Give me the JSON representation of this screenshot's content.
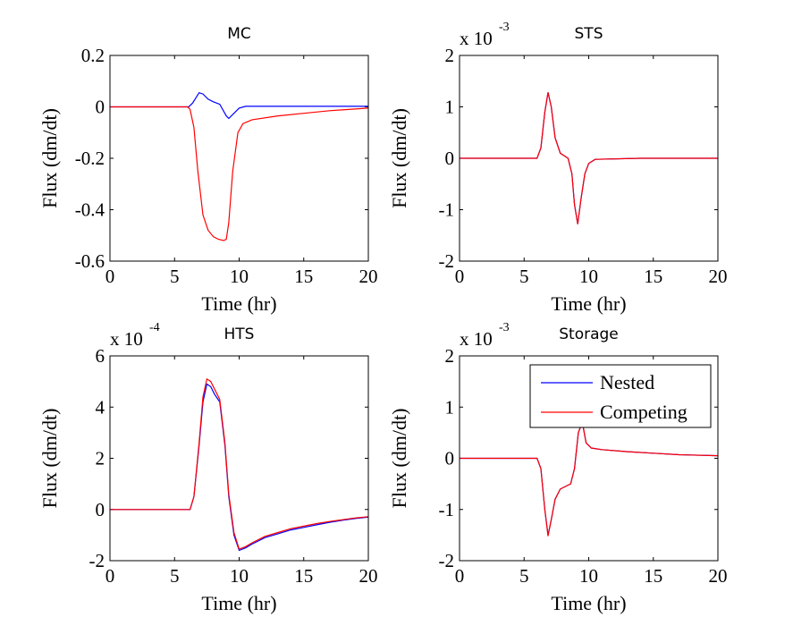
{
  "colors": {
    "nested": "#0000ff",
    "competing": "#ff0000"
  },
  "legend": {
    "entries": [
      "Nested",
      "Competing"
    ],
    "placement": "top-right",
    "panel": "Storage"
  },
  "chart_data": [
    {
      "type": "line",
      "title": "MC",
      "xlabel": "Time (hr)",
      "ylabel": "Flux (dm/dt)",
      "multiplier": "",
      "xlim": [
        0,
        20
      ],
      "ylim": [
        -0.6,
        0.2
      ],
      "xticks": [
        "0",
        "5",
        "10",
        "15",
        "20"
      ],
      "yticks": [
        "-0.6",
        "-0.4",
        "-0.2",
        "0",
        "0.2"
      ],
      "series": [
        {
          "name": "Nested",
          "color": "#0000ff",
          "x": [
            0,
            6.1,
            6.4,
            6.9,
            7.2,
            7.6,
            8.0,
            8.5,
            9.0,
            9.2,
            9.6,
            10.0,
            10.5,
            12,
            20
          ],
          "y": [
            0,
            0,
            0.015,
            0.055,
            0.05,
            0.03,
            0.02,
            0.01,
            -0.035,
            -0.045,
            -0.025,
            -0.005,
            0.002,
            0.002,
            0.002
          ]
        },
        {
          "name": "Competing",
          "color": "#ff0000",
          "x": [
            0,
            6.0,
            6.2,
            6.5,
            6.8,
            7.2,
            7.6,
            8.0,
            8.4,
            8.8,
            9.0,
            9.2,
            9.5,
            9.9,
            10.3,
            11,
            13,
            15,
            17,
            20
          ],
          "y": [
            0,
            0,
            -0.01,
            -0.08,
            -0.25,
            -0.42,
            -0.48,
            -0.505,
            -0.515,
            -0.52,
            -0.515,
            -0.45,
            -0.25,
            -0.1,
            -0.065,
            -0.05,
            -0.035,
            -0.025,
            -0.015,
            -0.005
          ]
        }
      ]
    },
    {
      "type": "line",
      "title": "STS",
      "xlabel": "Time (hr)",
      "ylabel": "Flux (dm/dt)",
      "multiplier": "x 10",
      "multiplier_exp": "-3",
      "xlim": [
        0,
        20
      ],
      "ylim": [
        -2,
        2
      ],
      "xticks": [
        "0",
        "5",
        "10",
        "15",
        "20"
      ],
      "yticks": [
        "-2",
        "-1",
        "0",
        "1",
        "2"
      ],
      "series": [
        {
          "name": "Nested",
          "color": "#0000ff",
          "x": [
            0,
            6.0,
            6.3,
            6.6,
            6.85,
            7.1,
            7.4,
            7.8,
            8.1,
            8.4,
            8.7,
            8.9,
            9.15,
            9.4,
            9.7,
            10.0,
            10.5,
            14,
            20
          ],
          "y": [
            0,
            0,
            0.2,
            0.9,
            1.28,
            1.0,
            0.4,
            0.1,
            0.05,
            0.0,
            -0.3,
            -0.9,
            -1.28,
            -0.8,
            -0.3,
            -0.1,
            -0.02,
            0.0,
            0.0
          ]
        },
        {
          "name": "Competing",
          "color": "#ff0000",
          "x": [
            0,
            6.0,
            6.3,
            6.6,
            6.85,
            7.1,
            7.4,
            7.8,
            8.1,
            8.4,
            8.7,
            8.9,
            9.15,
            9.4,
            9.7,
            10.0,
            10.5,
            14,
            20
          ],
          "y": [
            0,
            0,
            0.2,
            0.9,
            1.28,
            1.0,
            0.4,
            0.1,
            0.05,
            0.0,
            -0.3,
            -0.9,
            -1.28,
            -0.8,
            -0.3,
            -0.1,
            -0.02,
            0.0,
            0.0
          ]
        }
      ]
    },
    {
      "type": "line",
      "title": "HTS",
      "xlabel": "Time (hr)",
      "ylabel": "Flux (dm/dt)",
      "multiplier": "x 10",
      "multiplier_exp": "-4",
      "xlim": [
        0,
        20
      ],
      "ylim": [
        -2,
        6
      ],
      "xticks": [
        "0",
        "5",
        "10",
        "15",
        "20"
      ],
      "yticks": [
        "-2",
        "0",
        "2",
        "4",
        "6"
      ],
      "series": [
        {
          "name": "Nested",
          "color": "#0000ff",
          "x": [
            0,
            6.2,
            6.5,
            6.9,
            7.2,
            7.5,
            7.8,
            8.1,
            8.5,
            8.9,
            9.2,
            9.6,
            10.0,
            10.5,
            11,
            12,
            13,
            14,
            15,
            16,
            17,
            18,
            19,
            20
          ],
          "y": [
            0,
            0,
            0.5,
            2.5,
            4.2,
            4.9,
            4.8,
            4.5,
            4.2,
            2.5,
            0.5,
            -1.0,
            -1.6,
            -1.5,
            -1.35,
            -1.1,
            -0.95,
            -0.8,
            -0.7,
            -0.6,
            -0.5,
            -0.42,
            -0.35,
            -0.3
          ]
        },
        {
          "name": "Competing",
          "color": "#ff0000",
          "x": [
            0,
            6.2,
            6.5,
            6.9,
            7.2,
            7.5,
            7.8,
            8.1,
            8.5,
            8.9,
            9.2,
            9.6,
            10.0,
            10.5,
            11,
            12,
            13,
            14,
            15,
            16,
            17,
            18,
            19,
            20
          ],
          "y": [
            0,
            0,
            0.5,
            2.6,
            4.4,
            5.1,
            5.0,
            4.7,
            4.3,
            2.6,
            0.6,
            -0.9,
            -1.55,
            -1.45,
            -1.3,
            -1.05,
            -0.9,
            -0.75,
            -0.65,
            -0.55,
            -0.47,
            -0.4,
            -0.33,
            -0.28
          ]
        }
      ]
    },
    {
      "type": "line",
      "title": "Storage",
      "xlabel": "Time (hr)",
      "ylabel": "Flux (dm/dt)",
      "multiplier": "x 10",
      "multiplier_exp": "-3",
      "xlim": [
        0,
        20
      ],
      "ylim": [
        -2,
        2
      ],
      "xticks": [
        "0",
        "5",
        "10",
        "15",
        "20"
      ],
      "yticks": [
        "-2",
        "-1",
        "0",
        "1",
        "2"
      ],
      "series": [
        {
          "name": "Nested",
          "color": "#0000ff",
          "x": [
            0,
            6.0,
            6.3,
            6.6,
            6.85,
            7.1,
            7.4,
            7.8,
            8.2,
            8.6,
            8.9,
            9.2,
            9.5,
            9.8,
            10.2,
            11,
            13,
            15,
            17,
            20
          ],
          "y": [
            0,
            0,
            -0.2,
            -1.0,
            -1.5,
            -1.2,
            -0.8,
            -0.6,
            -0.55,
            -0.5,
            -0.2,
            0.5,
            0.7,
            0.3,
            0.2,
            0.17,
            0.13,
            0.1,
            0.07,
            0.05
          ]
        },
        {
          "name": "Competing",
          "color": "#ff0000",
          "x": [
            0,
            6.0,
            6.3,
            6.6,
            6.85,
            7.1,
            7.4,
            7.8,
            8.2,
            8.6,
            8.9,
            9.2,
            9.5,
            9.8,
            10.2,
            11,
            13,
            15,
            17,
            20
          ],
          "y": [
            0,
            0,
            -0.2,
            -1.0,
            -1.52,
            -1.2,
            -0.8,
            -0.6,
            -0.55,
            -0.5,
            -0.2,
            0.5,
            0.72,
            0.3,
            0.2,
            0.17,
            0.13,
            0.1,
            0.07,
            0.05
          ]
        }
      ]
    }
  ]
}
